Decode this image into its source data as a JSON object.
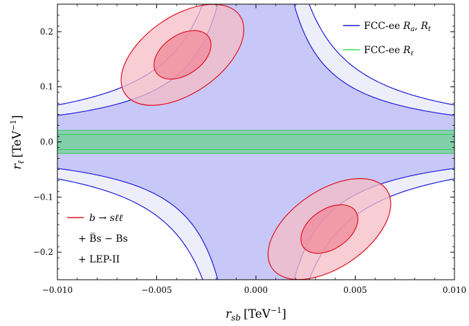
{
  "chart_data": {
    "type": "contour",
    "xlim": [
      -0.01,
      0.01
    ],
    "ylim": [
      -0.25,
      0.25
    ],
    "x_ticks": [
      -0.01,
      -0.005,
      0.0,
      0.005,
      0.01
    ],
    "x_tick_labels": [
      "−0.010",
      "−0.005",
      "0.000",
      "0.005",
      "0.010"
    ],
    "y_ticks": [
      -0.2,
      -0.1,
      0.0,
      0.1,
      0.2
    ],
    "y_tick_labels": [
      "−0.2",
      "−0.1",
      "0.0",
      "0.1",
      "0.2"
    ],
    "xlabel": {
      "symbol": "r",
      "sub": "sb",
      "unit": "[TeV",
      "exp": "−1",
      "close": "]"
    },
    "ylabel": {
      "symbol": "r",
      "sub": "ℓ",
      "unit": "[TeV",
      "exp": "−1",
      "close": "]"
    },
    "grid": false,
    "legend_position": "top-right",
    "legend": [
      {
        "prefix": "FCC-ee ",
        "math": "R",
        "sub1": "a",
        "sep": ", ",
        "math2": "R",
        "sub2": "t",
        "color": "#1a1ad6"
      },
      {
        "prefix": "FCC-ee ",
        "math": "R",
        "sub1": "ℓ",
        "color": "#33dd55"
      }
    ],
    "legend_bottom": {
      "color": "#e0101e",
      "lines": [
        "b → sℓℓ",
        "+ B̅s − Bs",
        "+ LEP-II"
      ]
    },
    "regions": {
      "fcc_ra_rt": {
        "description_key": "hyperbolic allowed region",
        "inner_k": 0.00048,
        "outer_k": 0.00067,
        "fill_inner": "#c8c8f8",
        "fill_outer": "#eeeefb",
        "stroke": "#1a1ad6"
      },
      "fcc_rl": {
        "band_inner": [
          -0.014,
          0.014
        ],
        "band_outer": [
          -0.021,
          0.021
        ],
        "fill": "#80cfa8",
        "stroke": "#33cc55"
      },
      "bsll_fits": [
        {
          "center": [
            -0.0037,
            0.158
          ],
          "ellipses": [
            {
              "a_x": 0.0016,
              "a_y": 0.036,
              "rot": -0.6,
              "fill": "#f08a9a"
            },
            {
              "a_x": 0.0035,
              "a_y": 0.07,
              "rot": -0.6,
              "fill": "#f6bcc5"
            }
          ]
        },
        {
          "center": [
            0.0037,
            -0.158
          ],
          "ellipses": [
            {
              "a_x": 0.0016,
              "a_y": 0.036,
              "rot": -0.6,
              "fill": "#f08a9a"
            },
            {
              "a_x": 0.0035,
              "a_y": 0.07,
              "rot": -0.6,
              "fill": "#f6bcc5"
            }
          ]
        }
      ]
    }
  }
}
